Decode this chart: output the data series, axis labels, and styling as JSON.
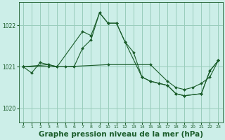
{
  "background_color": "#cceee8",
  "grid_color": "#99ccbb",
  "line_color": "#1a5c2a",
  "marker_color": "#1a5c2a",
  "title": "Graphe pression niveau de la mer (hPa)",
  "title_fontsize": 7.5,
  "xlim": [
    -0.5,
    23.5
  ],
  "ylim": [
    1019.65,
    1022.55
  ],
  "yticks": [
    1020,
    1021,
    1022
  ],
  "xticks": [
    0,
    1,
    2,
    3,
    4,
    5,
    6,
    7,
    8,
    9,
    10,
    11,
    12,
    13,
    14,
    15,
    16,
    17,
    18,
    19,
    20,
    21,
    22,
    23
  ],
  "series1_x": [
    0,
    1,
    2,
    3,
    4,
    6,
    7,
    8,
    9,
    10,
    11,
    12,
    13,
    14,
    15,
    16,
    17,
    18,
    19,
    21,
    22,
    23
  ],
  "series1_y": [
    1021.0,
    1020.85,
    1021.1,
    1021.05,
    1021.0,
    1021.0,
    1021.45,
    1021.65,
    1022.3,
    1022.05,
    1022.05,
    1021.6,
    1021.35,
    1020.75,
    1020.65,
    1020.6,
    1020.55,
    1020.35,
    1020.3,
    1020.35,
    1020.9,
    1021.15
  ],
  "series2_x": [
    0,
    3,
    4,
    7,
    8,
    9,
    10,
    11,
    12,
    14,
    15,
    16,
    17,
    18,
    19,
    21,
    22,
    23
  ],
  "series2_y": [
    1021.0,
    1021.05,
    1021.0,
    1021.85,
    1021.75,
    1022.3,
    1022.05,
    1022.05,
    1021.6,
    1020.75,
    1020.65,
    1020.6,
    1020.55,
    1020.35,
    1020.3,
    1020.35,
    1020.9,
    1021.15
  ],
  "series3_x": [
    0,
    3,
    5,
    10,
    15,
    17,
    18,
    19,
    20,
    21,
    22,
    23
  ],
  "series3_y": [
    1021.0,
    1021.0,
    1021.0,
    1021.05,
    1021.05,
    1020.65,
    1020.5,
    1020.45,
    1020.5,
    1020.6,
    1020.75,
    1021.15
  ]
}
